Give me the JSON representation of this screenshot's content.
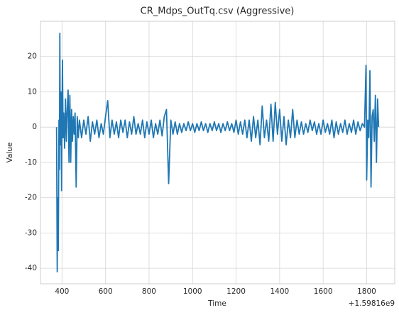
{
  "chart_data": {
    "type": "line",
    "title": "CR_Mdps_OutTq.csv (Aggressive)",
    "x_label": "Time",
    "y_label": "Value",
    "x_offset_label": "+1.59816e9",
    "color": "#1f77b4",
    "grid": true,
    "xlim": [
      301,
      1929
    ],
    "ylim": [
      -44.4,
      30
    ],
    "xticks": [
      400,
      600,
      800,
      1000,
      1200,
      1400,
      1600,
      1800
    ],
    "yticks": [
      -40,
      -30,
      -20,
      -10,
      0,
      10,
      20
    ],
    "x": [
      375,
      378,
      380,
      383,
      386,
      388,
      390,
      392,
      395,
      398,
      400,
      402,
      405,
      408,
      412,
      416,
      420,
      424,
      428,
      432,
      436,
      440,
      444,
      448,
      452,
      456,
      460,
      465,
      470,
      475,
      480,
      490,
      500,
      510,
      520,
      530,
      540,
      550,
      560,
      570,
      580,
      590,
      600,
      610,
      620,
      630,
      640,
      650,
      660,
      670,
      680,
      690,
      700,
      710,
      720,
      730,
      740,
      750,
      760,
      770,
      780,
      790,
      800,
      810,
      820,
      830,
      840,
      850,
      860,
      870,
      880,
      890,
      900,
      910,
      920,
      930,
      940,
      950,
      960,
      970,
      980,
      990,
      1000,
      1010,
      1020,
      1030,
      1040,
      1050,
      1060,
      1070,
      1080,
      1090,
      1100,
      1110,
      1120,
      1130,
      1140,
      1150,
      1160,
      1170,
      1180,
      1190,
      1200,
      1210,
      1220,
      1230,
      1240,
      1250,
      1260,
      1270,
      1280,
      1290,
      1300,
      1310,
      1320,
      1330,
      1340,
      1350,
      1360,
      1370,
      1380,
      1390,
      1400,
      1410,
      1420,
      1430,
      1440,
      1450,
      1460,
      1470,
      1480,
      1490,
      1500,
      1510,
      1520,
      1530,
      1540,
      1550,
      1560,
      1570,
      1580,
      1590,
      1600,
      1610,
      1620,
      1630,
      1640,
      1650,
      1660,
      1670,
      1680,
      1690,
      1700,
      1710,
      1720,
      1730,
      1740,
      1750,
      1760,
      1770,
      1780,
      1790,
      1797,
      1800,
      1805,
      1810,
      1815,
      1820,
      1825,
      1830,
      1835,
      1840,
      1845,
      1850,
      1855
    ],
    "values": [
      0,
      -41,
      -20,
      -35,
      2,
      -12,
      26.6,
      -5,
      10,
      -18,
      3,
      19,
      -3,
      4,
      -6,
      8,
      -4,
      5,
      10.5,
      -10,
      9,
      -10,
      5,
      -4,
      3,
      -2,
      4,
      -17,
      3,
      -3,
      2,
      -3,
      2,
      -2,
      3,
      -4,
      1.5,
      -2,
      2,
      -3,
      1,
      -2,
      3,
      7.5,
      -3,
      2,
      -2,
      1.5,
      -3,
      2,
      -1.5,
      2,
      -3,
      1.5,
      -2,
      3,
      -2,
      1,
      -2,
      2,
      -3,
      1.5,
      -2,
      2,
      -3,
      1,
      -2,
      2,
      -2.5,
      3,
      5,
      -16,
      2,
      -2,
      1.5,
      -2,
      1,
      -1.5,
      1,
      -1,
      1.5,
      -1,
      1,
      -1.5,
      1,
      -1,
      1.5,
      -1,
      1,
      -1.5,
      1,
      -1,
      1.5,
      -1,
      1,
      -1.5,
      1,
      -1,
      1.5,
      -1,
      1,
      -1.5,
      2,
      -2,
      1.5,
      -2,
      2,
      -3,
      2,
      -4,
      3,
      -3,
      2,
      -5,
      6,
      -3,
      2,
      -4,
      6.5,
      -4,
      7,
      -2,
      5,
      -4,
      3,
      -5,
      2,
      -3,
      5,
      -3,
      2,
      -2,
      1.5,
      -2,
      1,
      -1.5,
      2,
      -1,
      1.5,
      -2,
      1,
      -2,
      2,
      -1.5,
      1,
      -2,
      2,
      -3,
      1.5,
      -2,
      1,
      -1.5,
      2,
      -2,
      1,
      -1.5,
      2,
      -2,
      1.5,
      -1,
      1,
      0,
      17.5,
      -15,
      2,
      -3,
      16,
      -17,
      3,
      5,
      -4,
      9,
      -10,
      8,
      0
    ]
  }
}
